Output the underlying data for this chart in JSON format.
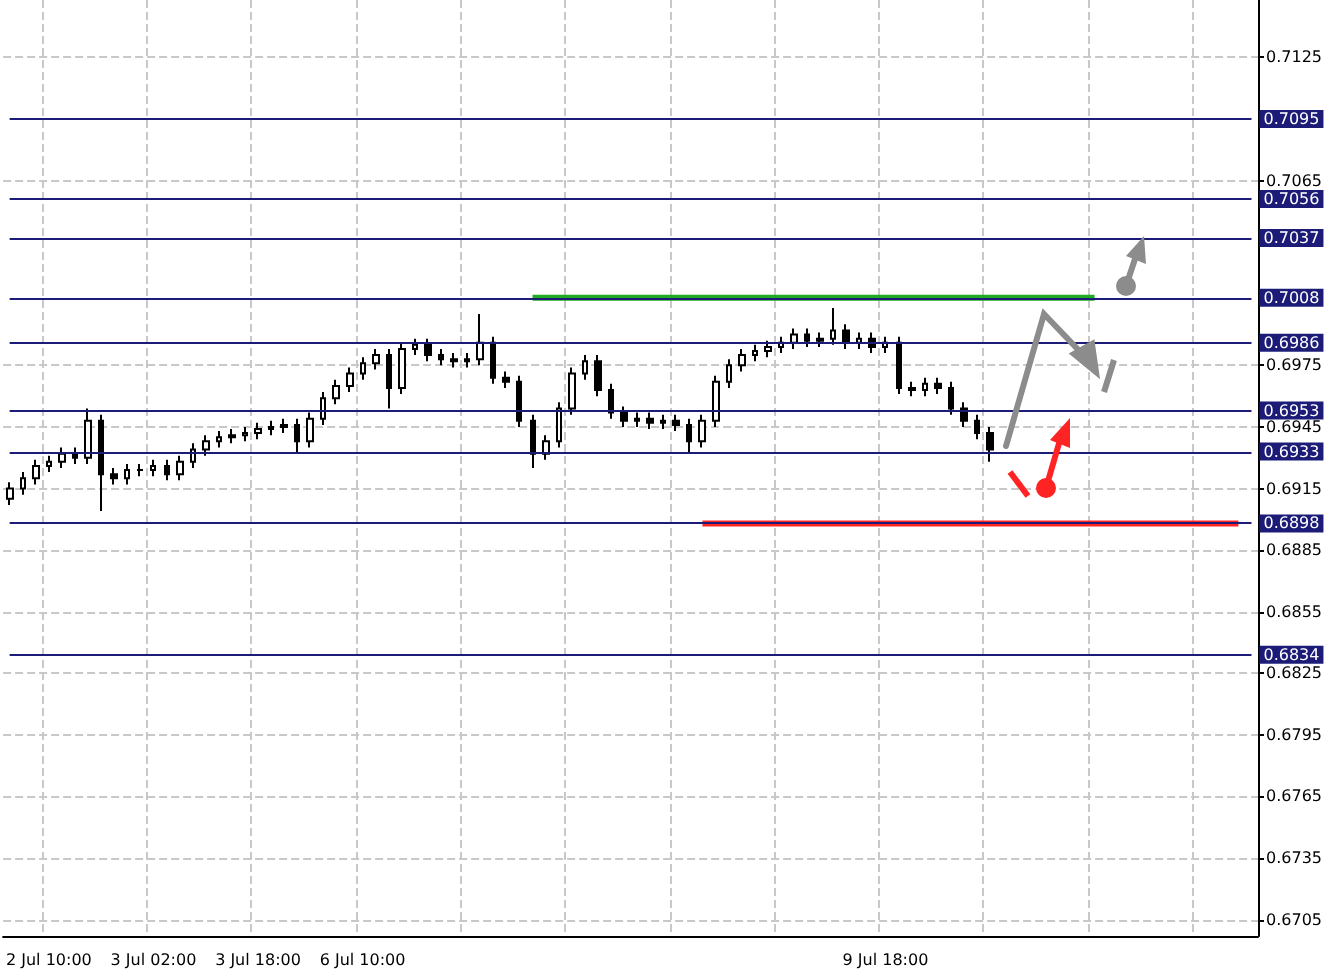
{
  "chart_data": {
    "type": "candlestick",
    "categories": [
      null,
      null,
      null,
      "2 Jul 10:00",
      null,
      null,
      null,
      null,
      null,
      null,
      null,
      "3 Jul 02:00",
      null,
      null,
      null,
      null,
      null,
      null,
      null,
      "3 Jul 18:00",
      null,
      null,
      null,
      null,
      null,
      null,
      null,
      "6 Jul 10:00",
      null,
      null,
      null,
      null,
      null,
      null,
      null,
      null,
      null,
      null,
      null,
      null,
      null,
      null,
      null,
      null,
      null,
      null,
      null,
      null,
      null,
      null,
      null,
      null,
      null,
      null,
      null,
      null,
      null,
      null,
      null,
      null,
      null,
      null,
      null,
      null,
      null,
      null,
      null,
      "9 Jul 18:00",
      null,
      null,
      null,
      null,
      null,
      null,
      null,
      null,
      null,
      null,
      null,
      null,
      null,
      null,
      null,
      null,
      null,
      null,
      null,
      null,
      null,
      null,
      null,
      null,
      null,
      null,
      null,
      null
    ],
    "ohlc": [
      [
        0.691,
        0.6918,
        0.6907,
        0.6915
      ],
      [
        0.6915,
        0.6923,
        0.6912,
        0.692
      ],
      [
        0.692,
        0.6929,
        0.6917,
        0.6926
      ],
      [
        0.6926,
        0.6931,
        0.6923,
        0.6928
      ],
      [
        0.6928,
        0.6935,
        0.6925,
        0.6932
      ],
      [
        0.6932,
        0.6935,
        0.6927,
        0.693
      ],
      [
        0.693,
        0.6954,
        0.6927,
        0.6948
      ],
      [
        0.6948,
        0.6951,
        0.6904,
        0.6922
      ],
      [
        0.6922,
        0.6925,
        0.6917,
        0.692
      ],
      [
        0.692,
        0.6927,
        0.6917,
        0.6924
      ],
      [
        0.6924,
        0.6927,
        0.6921,
        0.6924
      ],
      [
        0.6924,
        0.6929,
        0.6921,
        0.6926
      ],
      [
        0.6926,
        0.6929,
        0.6919,
        0.6922
      ],
      [
        0.6922,
        0.6931,
        0.6919,
        0.6928
      ],
      [
        0.6928,
        0.6937,
        0.6925,
        0.6934
      ],
      [
        0.6934,
        0.6941,
        0.6931,
        0.6938
      ],
      [
        0.6938,
        0.6943,
        0.6935,
        0.694
      ],
      [
        0.694,
        0.6944,
        0.6937,
        0.6941
      ],
      [
        0.6941,
        0.6945,
        0.6938,
        0.6942
      ],
      [
        0.6942,
        0.6947,
        0.6939,
        0.6944
      ],
      [
        0.6944,
        0.6948,
        0.6941,
        0.6945
      ],
      [
        0.6945,
        0.6949,
        0.6942,
        0.6946
      ],
      [
        0.6946,
        0.6949,
        0.6932,
        0.6938
      ],
      [
        0.6938,
        0.6952,
        0.6935,
        0.6949
      ],
      [
        0.6949,
        0.6962,
        0.6946,
        0.6959
      ],
      [
        0.6959,
        0.6968,
        0.6956,
        0.6965
      ],
      [
        0.6965,
        0.6974,
        0.6962,
        0.6971
      ],
      [
        0.6971,
        0.6979,
        0.6968,
        0.6976
      ],
      [
        0.6976,
        0.6983,
        0.6973,
        0.698
      ],
      [
        0.698,
        0.6983,
        0.6954,
        0.6964
      ],
      [
        0.6964,
        0.6986,
        0.6961,
        0.6983
      ],
      [
        0.6983,
        0.6988,
        0.698,
        0.6985
      ],
      [
        0.6985,
        0.6988,
        0.6977,
        0.698
      ],
      [
        0.698,
        0.6983,
        0.6975,
        0.6978
      ],
      [
        0.6978,
        0.6981,
        0.6974,
        0.6977
      ],
      [
        0.6977,
        0.6981,
        0.6974,
        0.6978
      ],
      [
        0.6978,
        0.7,
        0.6975,
        0.6986
      ],
      [
        0.6986,
        0.6989,
        0.6966,
        0.6969
      ],
      [
        0.6969,
        0.6972,
        0.6964,
        0.6967
      ],
      [
        0.6967,
        0.697,
        0.6945,
        0.6948
      ],
      [
        0.6948,
        0.6951,
        0.6925,
        0.6932
      ],
      [
        0.6932,
        0.6941,
        0.6929,
        0.6938
      ],
      [
        0.6938,
        0.6957,
        0.6935,
        0.6954
      ],
      [
        0.6954,
        0.6974,
        0.6951,
        0.6971
      ],
      [
        0.6971,
        0.698,
        0.6968,
        0.6977
      ],
      [
        0.6977,
        0.698,
        0.696,
        0.6963
      ],
      [
        0.6963,
        0.6966,
        0.6949,
        0.6952
      ],
      [
        0.6952,
        0.6955,
        0.6945,
        0.6948
      ],
      [
        0.6948,
        0.6952,
        0.6945,
        0.6949
      ],
      [
        0.6949,
        0.6952,
        0.6944,
        0.6947
      ],
      [
        0.6947,
        0.6951,
        0.6944,
        0.6948
      ],
      [
        0.6948,
        0.6951,
        0.6943,
        0.6946
      ],
      [
        0.6946,
        0.6949,
        0.6932,
        0.6938
      ],
      [
        0.6938,
        0.6951,
        0.6935,
        0.6948
      ],
      [
        0.6948,
        0.697,
        0.6945,
        0.6967
      ],
      [
        0.6967,
        0.6978,
        0.6964,
        0.6975
      ],
      [
        0.6975,
        0.6983,
        0.6972,
        0.698
      ],
      [
        0.698,
        0.6985,
        0.6977,
        0.6982
      ],
      [
        0.6982,
        0.6987,
        0.6979,
        0.6984
      ],
      [
        0.6984,
        0.6989,
        0.6981,
        0.6986
      ],
      [
        0.6986,
        0.6993,
        0.6983,
        0.699
      ],
      [
        0.699,
        0.6993,
        0.6984,
        0.6987
      ],
      [
        0.6987,
        0.6991,
        0.6984,
        0.6988
      ],
      [
        0.6988,
        0.7003,
        0.6985,
        0.6992
      ],
      [
        0.6992,
        0.6995,
        0.6983,
        0.6986
      ],
      [
        0.6986,
        0.6991,
        0.6983,
        0.6988
      ],
      [
        0.6988,
        0.6991,
        0.6981,
        0.6984
      ],
      [
        0.6984,
        0.6989,
        0.6981,
        0.6986
      ],
      [
        0.6986,
        0.6989,
        0.6961,
        0.6964
      ],
      [
        0.6964,
        0.6967,
        0.696,
        0.6963
      ],
      [
        0.6963,
        0.6969,
        0.696,
        0.6966
      ],
      [
        0.6966,
        0.6969,
        0.6961,
        0.6964
      ],
      [
        0.6964,
        0.6967,
        0.6951,
        0.6954
      ],
      [
        0.6954,
        0.6957,
        0.6945,
        0.6948
      ],
      [
        0.6948,
        0.6951,
        0.6939,
        0.6942
      ],
      [
        0.6942,
        0.6945,
        0.6928,
        0.6934
      ],
      null,
      null,
      null,
      null,
      null,
      null,
      null,
      null,
      null,
      null,
      null,
      null,
      null,
      null,
      null,
      null,
      null,
      null,
      null,
      null
    ],
    "color": "#000000",
    "series": [
      {
        "type": "line",
        "color": "#22aa22",
        "values": [
          null,
          null,
          null,
          null,
          null,
          null,
          null,
          null,
          null,
          null,
          null,
          null,
          null,
          null,
          null,
          null,
          null,
          null,
          null,
          null,
          null,
          null,
          null,
          null,
          null,
          null,
          null,
          null,
          null,
          null,
          null,
          null,
          null,
          null,
          null,
          null,
          null,
          null,
          null,
          null,
          0.7008,
          0.7008,
          0.7008,
          0.7008,
          0.7008,
          0.7008,
          0.7008,
          0.7008,
          0.7008,
          0.7008,
          0.7008,
          0.7008,
          0.7008,
          0.7008,
          0.7008,
          0.7008,
          0.7008,
          0.7008,
          0.7008,
          0.7008,
          0.7008,
          0.7008,
          0.7008,
          0.7008,
          0.7008,
          0.7008,
          0.7008,
          0.7008,
          0.7008,
          0.7008,
          0.7008,
          0.7008,
          0.7008,
          0.7008,
          0.7008,
          0.7008,
          0.7008,
          0.7008,
          0.7008,
          0.7008,
          0.7008,
          0.7008,
          0.7008,
          0.7008,
          null,
          null,
          null,
          null,
          null,
          null,
          null,
          null,
          null,
          null,
          null,
          null
        ]
      },
      {
        "type": "line",
        "color": "#ff2424",
        "values": [
          null,
          null,
          null,
          null,
          null,
          null,
          null,
          null,
          null,
          null,
          null,
          null,
          null,
          null,
          null,
          null,
          null,
          null,
          null,
          null,
          null,
          null,
          null,
          null,
          null,
          null,
          null,
          null,
          null,
          null,
          null,
          null,
          null,
          null,
          null,
          null,
          null,
          null,
          null,
          null,
          null,
          null,
          null,
          null,
          null,
          null,
          null,
          null,
          null,
          null,
          null,
          null,
          null,
          0.6898,
          0.6898,
          0.6898,
          0.6898,
          0.6898,
          0.6898,
          0.6898,
          0.6898,
          0.6898,
          0.6898,
          0.6898,
          0.6898,
          0.6898,
          0.6898,
          0.6898,
          0.6898,
          0.6898,
          0.6898,
          0.6898,
          0.6898,
          0.6898,
          0.6898,
          0.6898,
          0.6898,
          0.6898,
          0.6898,
          0.6898,
          0.6898,
          0.6898,
          0.6898,
          0.6898,
          0.6898,
          0.6898,
          0.6898,
          0.6898,
          0.6898,
          0.6898,
          0.6898,
          0.6898,
          0.6898,
          0.6898,
          0.6898,
          null
        ]
      }
    ],
    "ylim": [
      0.6697,
      0.7153
    ],
    "yticks": [
      0.7125,
      0.7065,
      0.6975,
      0.6945,
      0.6915,
      0.6885,
      0.6855,
      0.6825,
      0.6795,
      0.6765,
      0.6735,
      0.6705
    ],
    "ref_lines": [
      {
        "axis": "y",
        "value": 0.7095,
        "label": "0.7095",
        "color": "#1c1c78"
      },
      {
        "axis": "y",
        "value": 0.7056,
        "label": "0.7056",
        "color": "#1c1c78"
      },
      {
        "axis": "y",
        "value": 0.7037,
        "label": "0.7037",
        "color": "#1c1c78"
      },
      {
        "axis": "y",
        "value": 0.7008,
        "label": "0.7008",
        "color": "#1c1c78"
      },
      {
        "axis": "y",
        "value": 0.6986,
        "label": "0.6986",
        "color": "#1c1c78"
      },
      {
        "axis": "y",
        "value": 0.6953,
        "label": "0.6953",
        "color": "#1c1c78"
      },
      {
        "axis": "y",
        "value": 0.6933,
        "label": "0.6933",
        "color": "#1c1c78"
      },
      {
        "axis": "y",
        "value": 0.6898,
        "label": "0.6898",
        "color": "#1c1c78"
      },
      {
        "axis": "y",
        "value": 0.6834,
        "label": "0.6834",
        "color": "#1c1c78"
      }
    ],
    "grid": true
  }
}
